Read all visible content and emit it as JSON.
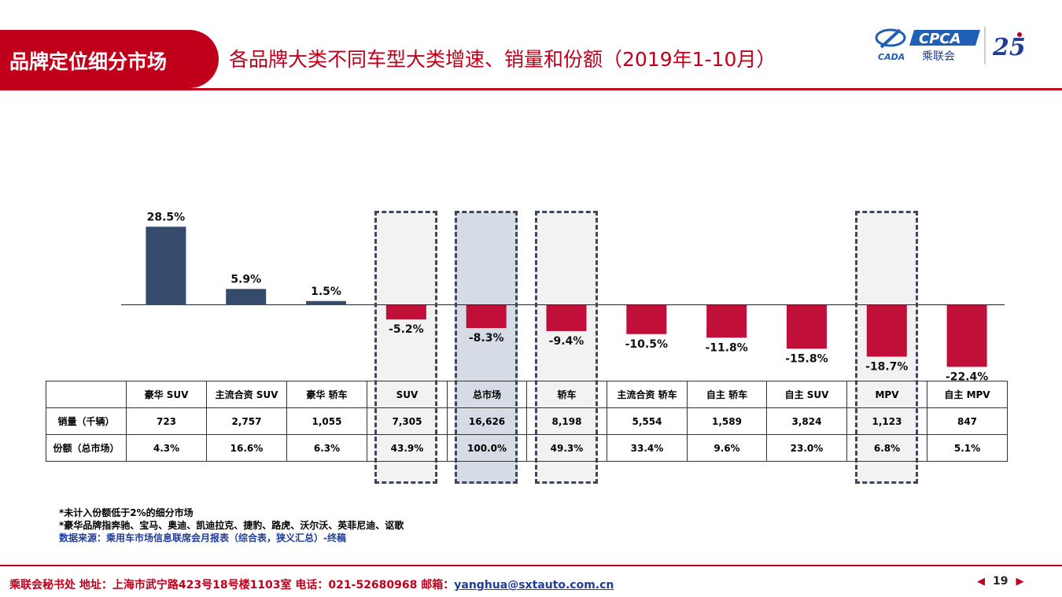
{
  "header": {
    "tag": "品牌定位细分市场",
    "title": "各品牌大类不同车型大类增速、销量和份额（2019年1-10月）",
    "logo_cpca": "CPCA",
    "logo_cpca_cn": "乘联会",
    "logo_cada": "CADA",
    "logo_25": "25"
  },
  "colors": {
    "positive": "#354b6b",
    "negative": "#c0103a",
    "accent": "#c0001a"
  },
  "chart_data": {
    "type": "bar",
    "categories": [
      "豪华 SUV",
      "主流合资 SUV",
      "豪华 轿车",
      "SUV",
      "总市场",
      "轿车",
      "主流合资 轿车",
      "自主 轿车",
      "自主 SUV",
      "MPV",
      "自主 MPV"
    ],
    "values": [
      28.5,
      5.9,
      1.5,
      -5.2,
      -8.3,
      -9.4,
      -10.5,
      -11.8,
      -15.8,
      -18.7,
      -22.4
    ],
    "value_labels": [
      "28.5%",
      "5.9%",
      "1.5%",
      "-5.2%",
      "-8.3%",
      "-9.4%",
      "-10.5%",
      "-11.8%",
      "-15.8%",
      "-18.7%",
      "-22.4%"
    ],
    "highlighted": [
      "SUV",
      "总市场",
      "轿车",
      "MPV"
    ],
    "grid": false,
    "legend": "none"
  },
  "table": {
    "headers": [
      "豪华 SUV",
      "主流合资 SUV",
      "豪华 轿车",
      "SUV",
      "总市场",
      "轿车",
      "主流合资 轿车",
      "自主 轿车",
      "自主 SUV",
      "MPV",
      "自主 MPV"
    ],
    "rows": [
      {
        "label": "销量（千辆）",
        "values": [
          "723",
          "2,757",
          "1,055",
          "7,305",
          "16,626",
          "8,198",
          "5,554",
          "1,589",
          "3,824",
          "1,123",
          "847"
        ]
      },
      {
        "label": "份额（总市场）",
        "values": [
          "4.3%",
          "16.6%",
          "6.3%",
          "43.9%",
          "100.0%",
          "49.3%",
          "33.4%",
          "9.6%",
          "23.0%",
          "6.8%",
          "5.1%"
        ]
      }
    ]
  },
  "notes": {
    "line1": "*未计入份额低于2%的细分市场",
    "line2": "*豪华品牌指奔驰、宝马、奥迪、凯迪拉克、捷豹、路虎、沃尔沃、英菲尼迪、讴歌",
    "source": "数据来源：乘用车市场信息联席会月报表（综合表，狭义汇总）-终稿"
  },
  "footer": {
    "text": "乘联会秘书处   地址：上海市武宁路423号18号楼1103室  电话：021-52680968   邮箱：",
    "email": "yanghua@sxtauto.com.cn"
  },
  "pager": {
    "prev": "◀",
    "page": "19",
    "next": "▶"
  }
}
